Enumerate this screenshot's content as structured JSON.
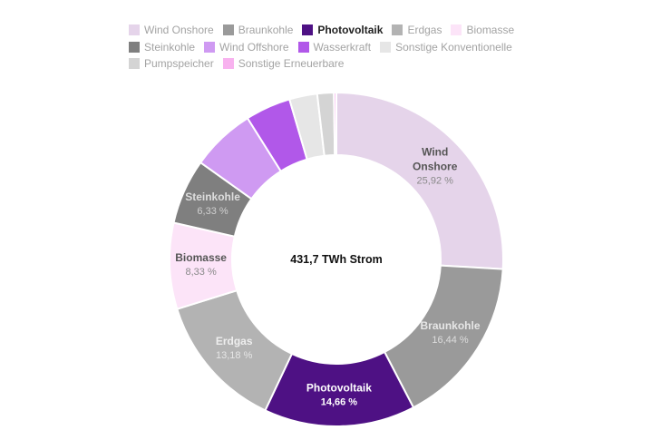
{
  "chart_data": {
    "type": "pie",
    "variant": "donut",
    "center_text": "431,7 TWh Strom",
    "legend_placement": "top",
    "series": [
      {
        "name": "Wind Onshore",
        "value": 25.92,
        "display": "25,92 %",
        "color": "#e5d4ea",
        "label_lines": [
          "Wind",
          "Onshore"
        ],
        "label_color": "#555555",
        "value_color": "#8a8a8a"
      },
      {
        "name": "Braunkohle",
        "value": 16.44,
        "display": "16,44 %",
        "color": "#9a9a9a",
        "label_lines": [
          "Braunkohle"
        ],
        "label_color": "#e6e6e6",
        "value_color": "#dddddd"
      },
      {
        "name": "Photovoltaik",
        "value": 14.66,
        "display": "14,66 %",
        "color": "#4e1184",
        "label_lines": [
          "Photovoltaik"
        ],
        "label_color": "#ffffff",
        "value_color": "#ffffff",
        "highlight": true
      },
      {
        "name": "Erdgas",
        "value": 13.18,
        "display": "13,18 %",
        "color": "#b3b3b3",
        "label_lines": [
          "Erdgas"
        ],
        "label_color": "#eeeeee",
        "value_color": "#e6e6e6"
      },
      {
        "name": "Biomasse",
        "value": 8.33,
        "display": "8,33 %",
        "color": "#fce4f8",
        "label_lines": [
          "Biomasse"
        ],
        "label_color": "#555555",
        "value_color": "#8a8a8a"
      },
      {
        "name": "Steinkohle",
        "value": 6.33,
        "display": "6,33 %",
        "color": "#7f7f7f",
        "label_lines": [
          "Steinkohle"
        ],
        "label_color": "#dddddd",
        "value_color": "#d0d0d0"
      },
      {
        "name": "Wind Offshore",
        "value": 6.2,
        "color": "#cf9af2"
      },
      {
        "name": "Wasserkraft",
        "value": 4.4,
        "color": "#b158e9"
      },
      {
        "name": "Sonstige Konventionelle",
        "value": 2.7,
        "color": "#e6e6e6"
      },
      {
        "name": "Pumpspeicher",
        "value": 1.6,
        "color": "#d4d4d4"
      },
      {
        "name": "Sonstige Erneuerbare",
        "value": 0.24,
        "color": "#f8b2ef"
      }
    ],
    "legend_rows": [
      [
        "Wind Onshore",
        "Braunkohle",
        "Photovoltaik",
        "Erdgas",
        "Biomasse"
      ],
      [
        "Steinkohle",
        "Wind Offshore",
        "Wasserkraft",
        "Sonstige Konventionelle"
      ],
      [
        "Pumpspeicher",
        "Sonstige Erneuerbare"
      ]
    ]
  }
}
